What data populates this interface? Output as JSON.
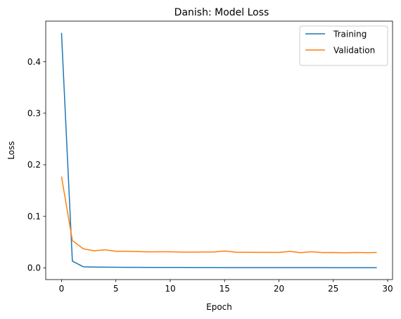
{
  "chart_data": {
    "type": "line",
    "title": "Danish: Model Loss",
    "xlabel": "Epoch",
    "ylabel": "Loss",
    "xlim": [
      -1.45,
      30.45
    ],
    "ylim": [
      -0.0228,
      0.4788
    ],
    "xticks": [
      0,
      5,
      10,
      15,
      20,
      25,
      30
    ],
    "yticks": [
      0.0,
      0.1,
      0.2,
      0.3,
      0.4
    ],
    "xtick_labels": [
      "0",
      "5",
      "10",
      "15",
      "20",
      "25",
      "30"
    ],
    "ytick_labels": [
      "0.0",
      "0.1",
      "0.2",
      "0.3",
      "0.4"
    ],
    "grid": false,
    "legend": "top-right",
    "x": [
      0,
      1,
      2,
      3,
      4,
      5,
      6,
      7,
      8,
      9,
      10,
      11,
      12,
      13,
      14,
      15,
      16,
      17,
      18,
      19,
      20,
      21,
      22,
      23,
      24,
      25,
      26,
      27,
      28,
      29
    ],
    "series": [
      {
        "name": "Training",
        "color": "#1f77b4",
        "values": [
          0.456,
          0.013,
          0.002,
          0.0015,
          0.0013,
          0.0011,
          0.001,
          0.0009,
          0.0008,
          0.0008,
          0.0007,
          0.0007,
          0.0006,
          0.0006,
          0.0006,
          0.0005,
          0.0005,
          0.0005,
          0.0005,
          0.0004,
          0.0004,
          0.0004,
          0.0004,
          0.0004,
          0.0004,
          0.0003,
          0.0003,
          0.0003,
          0.0003,
          0.0003
        ]
      },
      {
        "name": "Validation",
        "color": "#ff7f0e",
        "values": [
          0.177,
          0.053,
          0.037,
          0.033,
          0.035,
          0.032,
          0.032,
          0.0315,
          0.031,
          0.0312,
          0.0312,
          0.0305,
          0.0305,
          0.0307,
          0.0307,
          0.0328,
          0.0303,
          0.0302,
          0.03,
          0.03,
          0.0298,
          0.0318,
          0.0295,
          0.0312,
          0.0297,
          0.0298,
          0.0292,
          0.0298,
          0.0295,
          0.0298
        ]
      }
    ]
  }
}
